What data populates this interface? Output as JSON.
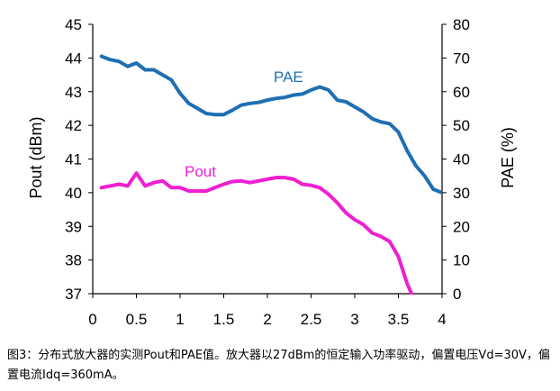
{
  "chart_data": {
    "type": "line",
    "title": "",
    "xlabel": "",
    "ylabel": "Pout (dBm)",
    "y2label": "PAE (%)",
    "xlim": [
      0,
      4
    ],
    "ylim": [
      37,
      45
    ],
    "y2lim": [
      0,
      80
    ],
    "x_ticks": [
      "0",
      "0.5",
      "1",
      "1.5",
      "2",
      "2.5",
      "3",
      "3.5",
      "4"
    ],
    "y_ticks": [
      "45",
      "44",
      "43",
      "42",
      "41",
      "40",
      "39",
      "38",
      "37"
    ],
    "y2_ticks": [
      "80",
      "70",
      "60",
      "50",
      "40",
      "30",
      "20",
      "10",
      "0"
    ],
    "grid": false,
    "series": [
      {
        "name": "PAE",
        "axis": "right",
        "color": "#1f6fb2",
        "x": [
          0.1,
          0.2,
          0.3,
          0.4,
          0.5,
          0.6,
          0.7,
          0.8,
          0.9,
          1.0,
          1.1,
          1.2,
          1.3,
          1.4,
          1.5,
          1.6,
          1.7,
          1.8,
          1.9,
          2.0,
          2.1,
          2.2,
          2.3,
          2.4,
          2.5,
          2.6,
          2.7,
          2.8,
          2.9,
          3.0,
          3.1,
          3.2,
          3.3,
          3.4,
          3.5,
          3.6,
          3.7,
          3.8,
          3.9,
          4.0
        ],
        "values": [
          70.5,
          69.5,
          69.0,
          67.5,
          68.5,
          66.5,
          66.5,
          65.0,
          63.5,
          59.5,
          56.5,
          55.0,
          53.5,
          53.2,
          53.2,
          54.5,
          56.0,
          56.5,
          56.8,
          57.5,
          58.0,
          58.3,
          59.0,
          59.3,
          60.5,
          61.4,
          60.5,
          57.5,
          57.0,
          55.5,
          54.0,
          52.0,
          51.0,
          50.5,
          48.0,
          42.5,
          38.0,
          35.0,
          31.0,
          30.0
        ]
      },
      {
        "name": "Pout",
        "axis": "left",
        "color": "#ee1fd2",
        "x": [
          0.1,
          0.2,
          0.3,
          0.4,
          0.5,
          0.6,
          0.7,
          0.8,
          0.9,
          1.0,
          1.1,
          1.2,
          1.3,
          1.4,
          1.5,
          1.6,
          1.7,
          1.8,
          1.9,
          2.0,
          2.1,
          2.2,
          2.3,
          2.4,
          2.5,
          2.6,
          2.7,
          2.8,
          2.9,
          3.0,
          3.1,
          3.2,
          3.3,
          3.4,
          3.5,
          3.6,
          3.65
        ],
        "values": [
          40.15,
          40.2,
          40.25,
          40.2,
          40.58,
          40.2,
          40.3,
          40.35,
          40.15,
          40.15,
          40.05,
          40.05,
          40.05,
          40.15,
          40.25,
          40.33,
          40.35,
          40.3,
          40.35,
          40.4,
          40.45,
          40.45,
          40.4,
          40.25,
          40.22,
          40.15,
          39.95,
          39.7,
          39.4,
          39.2,
          39.05,
          38.8,
          38.7,
          38.55,
          38.1,
          37.3,
          37.0
        ]
      }
    ],
    "annotations": [
      {
        "text": "PAE",
        "series": "PAE"
      },
      {
        "text": "Pout",
        "series": "Pout"
      }
    ]
  },
  "caption": "图3：分布式放大器的实测Pout和PAE值。放大器以27dBm的恒定输入功率驱动，偏置电压Vd=30V，偏置电流Idq=360mA。"
}
